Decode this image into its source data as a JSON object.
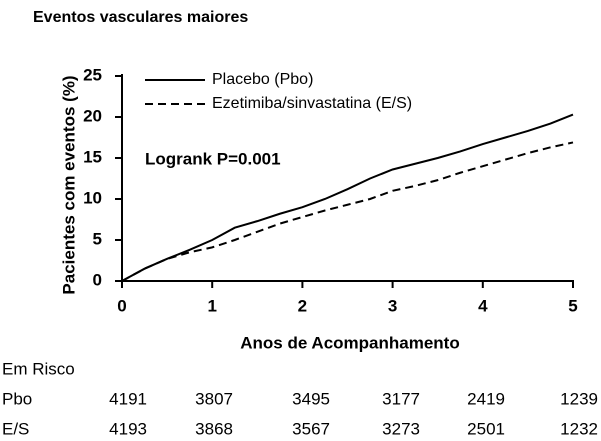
{
  "chart_data": {
    "type": "line",
    "title": "Eventos vasculares maiores",
    "x_label": "Anos de Acompanhamento",
    "y_label": "Pacientes com eventos (%)",
    "annotation": "Logrank  P=0.001",
    "x": [
      0,
      0.25,
      0.5,
      0.75,
      1,
      1.25,
      1.5,
      1.75,
      2,
      2.25,
      2.5,
      2.75,
      3,
      3.25,
      3.5,
      3.75,
      4,
      4.25,
      4.5,
      4.75,
      5
    ],
    "series": [
      {
        "name": "Placebo (Pbo)",
        "color": "#000000",
        "style": "solid",
        "values": [
          0,
          1.5,
          2.7,
          3.8,
          5,
          6.5,
          7.3,
          8.2,
          9,
          10,
          11.2,
          12.5,
          13.6,
          14.3,
          15,
          15.8,
          16.7,
          17.5,
          18.3,
          19.2,
          20.3
        ]
      },
      {
        "name": "Ezetimiba/sinvastatina (E/S)",
        "color": "#000000",
        "style": "dashed",
        "values": [
          0,
          1.5,
          2.7,
          3.5,
          4.1,
          5,
          6,
          7,
          7.8,
          8.6,
          9.3,
          10,
          11,
          11.6,
          12.3,
          13.2,
          14,
          14.8,
          15.6,
          16.3,
          16.9
        ]
      }
    ],
    "xlim": [
      0,
      5
    ],
    "xticks": [
      0,
      1,
      2,
      3,
      4,
      5
    ],
    "ylim": [
      0,
      25
    ],
    "yticks": [
      0,
      5,
      10,
      15,
      20,
      25
    ],
    "grid": false,
    "legend": "upper left"
  },
  "risk_table": {
    "title": "Em Risco",
    "rows": [
      {
        "label": "Pbo",
        "values": [
          4191,
          3807,
          3495,
          3177,
          2419,
          1239
        ]
      },
      {
        "label": "E/S",
        "values": [
          4193,
          3868,
          3567,
          3273,
          2501,
          1232
        ]
      }
    ]
  }
}
